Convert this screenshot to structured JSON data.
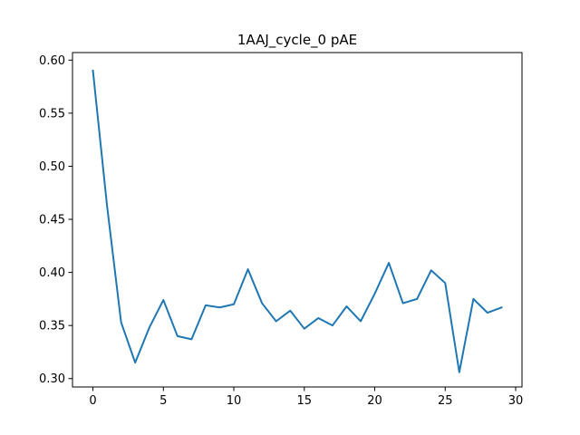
{
  "chart_data": {
    "type": "line",
    "title": "1AAJ_cycle_0 pAE",
    "xlabel": "",
    "ylabel": "",
    "xlim": [
      -1.45,
      30.45
    ],
    "ylim": [
      0.2921,
      0.6071
    ],
    "x_ticks": [
      0,
      5,
      10,
      15,
      20,
      25,
      30
    ],
    "x_tick_labels": [
      "0",
      "5",
      "10",
      "15",
      "20",
      "25",
      "30"
    ],
    "y_ticks": [
      0.3,
      0.35,
      0.4,
      0.45,
      0.5,
      0.55,
      0.6
    ],
    "y_tick_labels": [
      "0.30",
      "0.35",
      "0.40",
      "0.45",
      "0.50",
      "0.55",
      "0.60"
    ],
    "grid": false,
    "series": [
      {
        "color": "#1f77b4",
        "x": [
          0,
          1,
          2,
          3,
          4,
          5,
          6,
          7,
          8,
          9,
          10,
          11,
          12,
          13,
          14,
          15,
          16,
          17,
          18,
          19,
          20,
          21,
          22,
          23,
          24,
          25,
          26,
          27,
          28,
          29
        ],
        "y": [
          0.59,
          0.463,
          0.353,
          0.315,
          0.348,
          0.374,
          0.34,
          0.337,
          0.369,
          0.367,
          0.37,
          0.403,
          0.371,
          0.354,
          0.364,
          0.347,
          0.357,
          0.35,
          0.368,
          0.354,
          0.38,
          0.409,
          0.371,
          0.375,
          0.402,
          0.39,
          0.306,
          0.375,
          0.362,
          0.367
        ]
      }
    ]
  }
}
